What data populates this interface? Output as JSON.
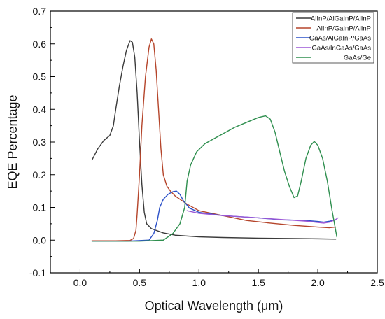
{
  "chart_data": {
    "type": "line",
    "xlabel": "Optical Wavelength (μm)",
    "ylabel": "EQE Percentage",
    "xlim": [
      -0.25,
      2.5
    ],
    "ylim": [
      -0.1,
      0.7
    ],
    "xticks": [
      0.0,
      0.5,
      1.0,
      1.5,
      2.0,
      2.5
    ],
    "xtick_labels": [
      "0.0",
      "0.5",
      "1.0",
      "1.5",
      "2.0",
      "2.5"
    ],
    "yticks": [
      -0.1,
      0.0,
      0.1,
      0.2,
      0.3,
      0.4,
      0.5,
      0.6,
      0.7
    ],
    "ytick_labels": [
      "-0.1",
      "0.0",
      "0.1",
      "0.2",
      "0.3",
      "0.4",
      "0.5",
      "0.6",
      "0.7"
    ],
    "grid": false,
    "legend_position": "top-right",
    "series": [
      {
        "name": "AlInP/AlGaInP/AlInP",
        "color": "#3a3a3a",
        "points": [
          [
            0.1,
            0.245
          ],
          [
            0.15,
            0.28
          ],
          [
            0.2,
            0.305
          ],
          [
            0.25,
            0.32
          ],
          [
            0.28,
            0.35
          ],
          [
            0.3,
            0.4
          ],
          [
            0.33,
            0.47
          ],
          [
            0.36,
            0.53
          ],
          [
            0.39,
            0.58
          ],
          [
            0.42,
            0.61
          ],
          [
            0.44,
            0.605
          ],
          [
            0.46,
            0.56
          ],
          [
            0.48,
            0.45
          ],
          [
            0.5,
            0.3
          ],
          [
            0.52,
            0.17
          ],
          [
            0.54,
            0.085
          ],
          [
            0.56,
            0.05
          ],
          [
            0.6,
            0.035
          ],
          [
            0.7,
            0.022
          ],
          [
            0.8,
            0.015
          ],
          [
            1.0,
            0.01
          ],
          [
            1.2,
            0.008
          ],
          [
            1.5,
            0.006
          ],
          [
            1.8,
            0.005
          ],
          [
            2.0,
            0.004
          ],
          [
            2.15,
            0.003
          ]
        ]
      },
      {
        "name": "AlInP/GaInP/AlInP",
        "color": "#b5452b",
        "points": [
          [
            0.1,
            -0.002
          ],
          [
            0.3,
            -0.002
          ],
          [
            0.42,
            -0.001
          ],
          [
            0.45,
            0.005
          ],
          [
            0.47,
            0.03
          ],
          [
            0.48,
            0.08
          ],
          [
            0.5,
            0.2
          ],
          [
            0.52,
            0.35
          ],
          [
            0.55,
            0.5
          ],
          [
            0.58,
            0.59
          ],
          [
            0.6,
            0.615
          ],
          [
            0.62,
            0.6
          ],
          [
            0.64,
            0.52
          ],
          [
            0.66,
            0.4
          ],
          [
            0.68,
            0.28
          ],
          [
            0.7,
            0.2
          ],
          [
            0.73,
            0.165
          ],
          [
            0.76,
            0.15
          ],
          [
            0.8,
            0.135
          ],
          [
            0.9,
            0.11
          ],
          [
            1.0,
            0.09
          ],
          [
            1.2,
            0.075
          ],
          [
            1.4,
            0.06
          ],
          [
            1.6,
            0.052
          ],
          [
            1.8,
            0.045
          ],
          [
            2.0,
            0.04
          ],
          [
            2.1,
            0.038
          ],
          [
            2.15,
            0.04
          ]
        ]
      },
      {
        "name": "GaAs/AlGaInP/GaAs",
        "color": "#2b50c8",
        "points": [
          [
            0.1,
            -0.003
          ],
          [
            0.4,
            -0.003
          ],
          [
            0.58,
            0.0
          ],
          [
            0.62,
            0.02
          ],
          [
            0.65,
            0.06
          ],
          [
            0.67,
            0.1
          ],
          [
            0.7,
            0.125
          ],
          [
            0.74,
            0.14
          ],
          [
            0.78,
            0.148
          ],
          [
            0.81,
            0.15
          ],
          [
            0.84,
            0.14
          ],
          [
            0.87,
            0.12
          ],
          [
            0.92,
            0.098
          ],
          [
            1.0,
            0.085
          ],
          [
            1.2,
            0.075
          ],
          [
            1.5,
            0.068
          ],
          [
            1.7,
            0.062
          ],
          [
            1.9,
            0.06
          ],
          [
            2.0,
            0.057
          ],
          [
            2.05,
            0.055
          ],
          [
            2.1,
            0.058
          ],
          [
            2.15,
            0.062
          ]
        ]
      },
      {
        "name": "GaAs/InGaAs/GaAs",
        "color": "#9b57d6",
        "points": [
          [
            0.9,
            0.09
          ],
          [
            1.0,
            0.082
          ],
          [
            1.2,
            0.075
          ],
          [
            1.5,
            0.068
          ],
          [
            1.7,
            0.063
          ],
          [
            1.9,
            0.058
          ],
          [
            2.0,
            0.054
          ],
          [
            2.05,
            0.052
          ],
          [
            2.1,
            0.055
          ],
          [
            2.15,
            0.063
          ],
          [
            2.17,
            0.068
          ]
        ]
      },
      {
        "name": "GaAs/Ge",
        "color": "#2f8f4f",
        "points": [
          [
            0.1,
            -0.003
          ],
          [
            0.5,
            -0.003
          ],
          [
            0.7,
            0.0
          ],
          [
            0.78,
            0.02
          ],
          [
            0.84,
            0.05
          ],
          [
            0.88,
            0.1
          ],
          [
            0.9,
            0.18
          ],
          [
            0.93,
            0.23
          ],
          [
            0.98,
            0.27
          ],
          [
            1.05,
            0.295
          ],
          [
            1.15,
            0.315
          ],
          [
            1.3,
            0.345
          ],
          [
            1.4,
            0.36
          ],
          [
            1.5,
            0.375
          ],
          [
            1.56,
            0.38
          ],
          [
            1.6,
            0.37
          ],
          [
            1.64,
            0.33
          ],
          [
            1.68,
            0.27
          ],
          [
            1.72,
            0.21
          ],
          [
            1.76,
            0.165
          ],
          [
            1.8,
            0.13
          ],
          [
            1.83,
            0.135
          ],
          [
            1.86,
            0.18
          ],
          [
            1.9,
            0.25
          ],
          [
            1.94,
            0.29
          ],
          [
            1.97,
            0.302
          ],
          [
            2.0,
            0.29
          ],
          [
            2.04,
            0.25
          ],
          [
            2.08,
            0.18
          ],
          [
            2.12,
            0.09
          ],
          [
            2.15,
            0.03
          ],
          [
            2.16,
            0.01
          ]
        ]
      }
    ]
  }
}
